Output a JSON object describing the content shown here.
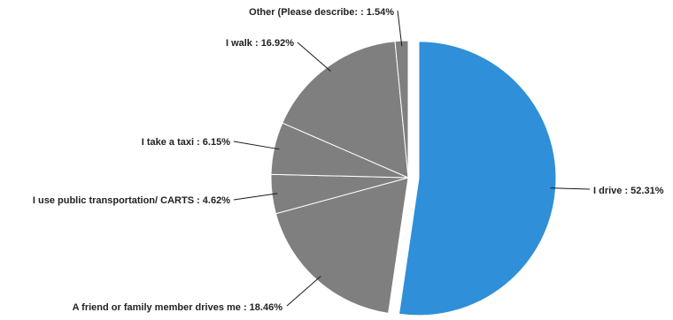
{
  "chart_data": {
    "type": "pie",
    "title": "",
    "slices": [
      {
        "label": "I drive : 52.31%",
        "name": "I drive",
        "value": 52.31,
        "color": "#2f8fd8",
        "exploded": true
      },
      {
        "label": "A friend or family member drives me : 18.46%",
        "name": "A friend or family member drives me",
        "value": 18.46,
        "color": "#7f7f7f",
        "exploded": false
      },
      {
        "label": "I use public transportation/ CARTS  : 4.62%",
        "name": "I use public transportation/ CARTS",
        "value": 4.62,
        "color": "#7f7f7f",
        "exploded": false
      },
      {
        "label": "I take a taxi : 6.15%",
        "name": "I take a taxi",
        "value": 6.15,
        "color": "#7f7f7f",
        "exploded": false
      },
      {
        "label": "I walk : 16.92%",
        "name": "I walk",
        "value": 16.92,
        "color": "#7f7f7f",
        "exploded": false
      },
      {
        "label": "Other (Please describe: : 1.54%",
        "name": "Other (Please describe:",
        "value": 1.54,
        "color": "#7f7f7f",
        "exploded": false
      }
    ],
    "legend": "none"
  }
}
